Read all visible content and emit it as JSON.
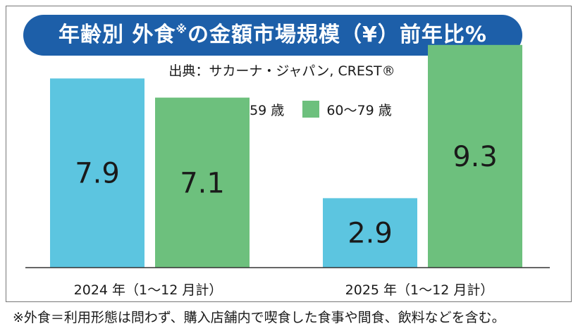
{
  "title": {
    "main_before": "年齢別 外食",
    "mark": "※",
    "main_after": "の金額市場規模（¥）前年比%"
  },
  "source": "出典：サカーナ・ジャパン, CREST®",
  "colors": {
    "title_bg": "#1d5fa9",
    "series_young": "#5cc5e0",
    "series_old": "#6dc07d",
    "axis": "#333333"
  },
  "chart_data": {
    "type": "bar",
    "title": "年齢別 外食※の金額市場規模（¥）前年比%",
    "categories": [
      "2024 年（1〜12 月計）",
      "2025 年（1〜12 月計）"
    ],
    "series": [
      {
        "name": "0〜59 歳",
        "values": [
          7.9,
          2.9
        ]
      },
      {
        "name": "60〜79 歳",
        "values": [
          7.1,
          9.3
        ]
      }
    ],
    "value_labels": [
      [
        "7.9",
        "2.9"
      ],
      [
        "7.1",
        "9.3"
      ]
    ],
    "ylim": [
      0,
      10
    ],
    "grid": false,
    "legend": "top-center"
  },
  "footnote": "※外食＝利用形態は問わず、購入店舗内で喫食した食事や間食、飲料などを含む。"
}
